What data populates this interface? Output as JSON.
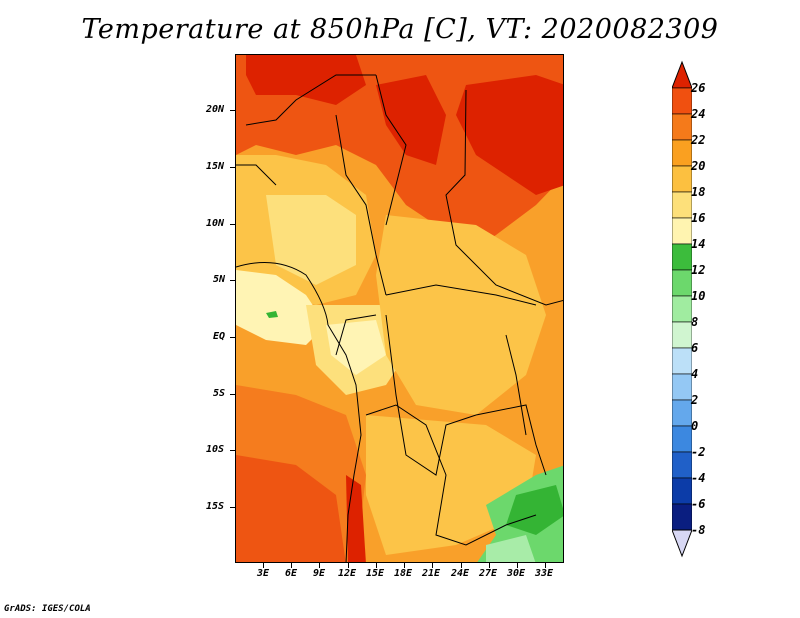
{
  "title": "Temperature at 850hPa [C], VT: 2020082309",
  "footer": "GrADS: IGES/COLA",
  "map": {
    "lat_labels": [
      "20N",
      "15N",
      "10N",
      "5N",
      "EQ",
      "5S",
      "10S",
      "15S"
    ],
    "lon_labels": [
      "3E",
      "6E",
      "9E",
      "12E",
      "15E",
      "18E",
      "21E",
      "24E",
      "27E",
      "30E",
      "33E"
    ]
  },
  "colorbar": {
    "labels": [
      "26",
      "24",
      "22",
      "20",
      "18",
      "16",
      "14",
      "12",
      "10",
      "8",
      "6",
      "4",
      "2",
      "0",
      "-2",
      "-4",
      "-6",
      "-8"
    ],
    "colors": [
      "#dd2200",
      "#f05010",
      "#f57a1a",
      "#faa020",
      "#fcc040",
      "#fde07a",
      "#fff4b0",
      "#3cbc3c",
      "#6cd86c",
      "#a0eca0",
      "#d0f5d0",
      "#bce0f8",
      "#94c8f4",
      "#64a8ec",
      "#3c88e0",
      "#2060c8",
      "#0c3ca8",
      "#0a1e80",
      "#00006e",
      "#d8d8f4"
    ]
  },
  "colors": {
    "tropical_max": "#d42000",
    "hot": "#ee5512",
    "warm": "#f57c1e",
    "mild": "#f9a02a",
    "cool": "#fcc448",
    "cooler": "#fde07c",
    "coolest": "#fff4b4",
    "green_high": "#34b434",
    "green_mid": "#6cd86c",
    "green_low": "#a8eca8"
  }
}
